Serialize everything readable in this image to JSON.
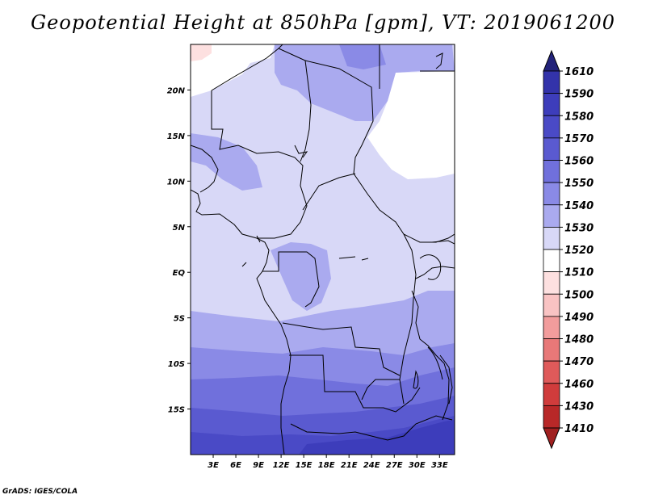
{
  "title": "Geopotential Height at 850hPa [gpm], VT: 2019061200",
  "credit": "GrADS: IGES/COLA",
  "map": {
    "lon_range": [
      0,
      35
    ],
    "lat_range": [
      -20,
      25
    ],
    "lat_ticks": [
      {
        "value": 20,
        "label": "20N"
      },
      {
        "value": 15,
        "label": "15N"
      },
      {
        "value": 10,
        "label": "10N"
      },
      {
        "value": 5,
        "label": "5N"
      },
      {
        "value": 0,
        "label": "EQ"
      },
      {
        "value": -5,
        "label": "5S"
      },
      {
        "value": -10,
        "label": "10S"
      },
      {
        "value": -15,
        "label": "15S"
      }
    ],
    "lon_ticks": [
      {
        "value": 3,
        "label": "3E"
      },
      {
        "value": 6,
        "label": "6E"
      },
      {
        "value": 9,
        "label": "9E"
      },
      {
        "value": 12,
        "label": "12E"
      },
      {
        "value": 15,
        "label": "15E"
      },
      {
        "value": 18,
        "label": "18E"
      },
      {
        "value": 21,
        "label": "21E"
      },
      {
        "value": 24,
        "label": "24E"
      },
      {
        "value": 27,
        "label": "27E"
      },
      {
        "value": 30,
        "label": "30E"
      },
      {
        "value": 33,
        "label": "33E"
      }
    ]
  },
  "colorbar": {
    "levels": [
      {
        "label": "1610",
        "color": "#2a2a96"
      },
      {
        "label": "1590",
        "color": "#3333aa"
      },
      {
        "label": "1580",
        "color": "#3d3dbb"
      },
      {
        "label": "1570",
        "color": "#4a4ac6"
      },
      {
        "label": "1560",
        "color": "#5a5ad0"
      },
      {
        "label": "1550",
        "color": "#7070dc"
      },
      {
        "label": "1540",
        "color": "#8a8ae6"
      },
      {
        "label": "1530",
        "color": "#aaaaef"
      },
      {
        "label": "1520",
        "color": "#d8d8f7"
      },
      {
        "label": "1510",
        "color": "#ffffff"
      },
      {
        "label": "1500",
        "color": "#fde0e0"
      },
      {
        "label": "1490",
        "color": "#f9c3c3"
      },
      {
        "label": "1480",
        "color": "#f29c9c"
      },
      {
        "label": "1470",
        "color": "#e87878"
      },
      {
        "label": "1460",
        "color": "#df5a5a"
      },
      {
        "label": "1430",
        "color": "#d03c3c"
      },
      {
        "label": "1410",
        "color": "#b82828"
      }
    ],
    "top_arrow_color": "#22227a",
    "bottom_arrow_color": "#a02020"
  }
}
